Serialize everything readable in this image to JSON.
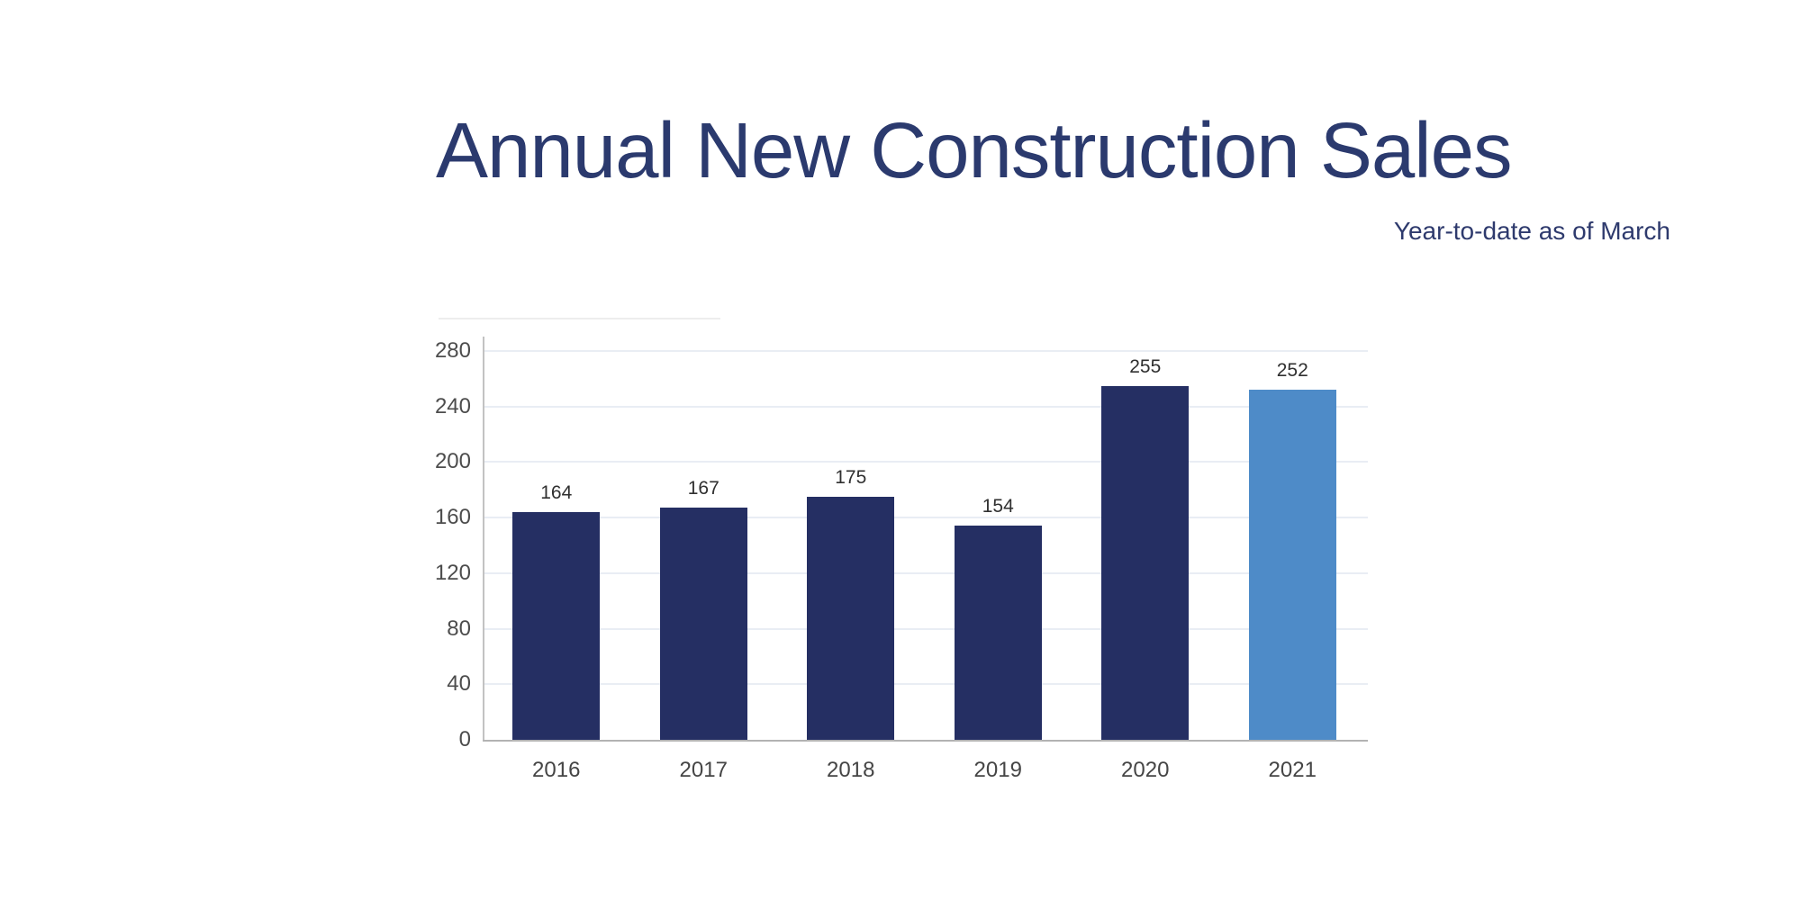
{
  "header": {
    "title": "Annual New Construction Sales",
    "subtitle": "Year-to-date as of March",
    "title_color": "#2b3a6e"
  },
  "chart_data": {
    "type": "bar",
    "title": "Annual New Construction Sales",
    "subtitle": "Year-to-date as of March",
    "categories": [
      "2016",
      "2017",
      "2018",
      "2019",
      "2020",
      "2021"
    ],
    "values": [
      164,
      167,
      175,
      154,
      255,
      252
    ],
    "bar_labels": [
      "164",
      "167",
      "175",
      "154",
      "255",
      "252"
    ],
    "y_ticks": [
      0,
      40,
      80,
      120,
      160,
      200,
      240,
      280
    ],
    "ylim": [
      0,
      290
    ],
    "xlabel": "",
    "ylabel": "",
    "grid": true,
    "legend": "none",
    "colors": {
      "bar_default": "#252f63",
      "bar_highlight": "#4e8bc8",
      "gridline": "#e9edf4",
      "axis": "#b3b3b3",
      "tick_text": "#4d4d4d",
      "value_text": "#303030"
    },
    "highlight_index": 5
  }
}
